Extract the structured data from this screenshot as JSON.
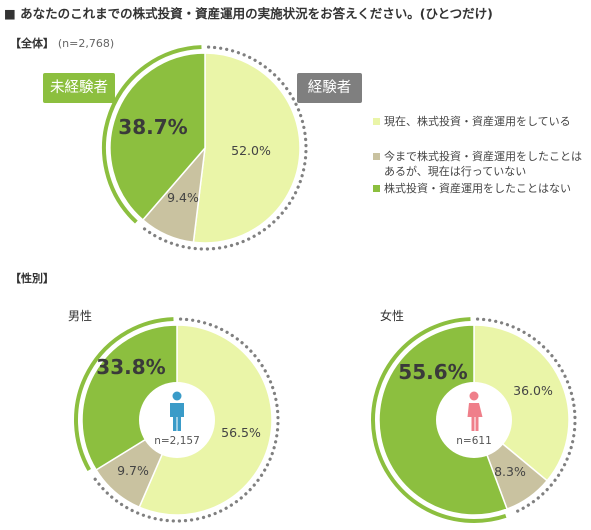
{
  "title": "■ あなたのこれまでの株式投資・資産運用の実施状況をお答えください。(ひとつだけ)",
  "section_total": {
    "label": "【全体】",
    "n": "(n=2,768)"
  },
  "tags": {
    "inexperienced": "未経験者",
    "experienced": "経験者"
  },
  "section_gender": {
    "label": "【性別】"
  },
  "legend": [
    {
      "lines": [
        "現在、株式投資・資産運用をしている"
      ],
      "color": "#eaf5a8"
    },
    {
      "lines": [
        "今まで株式投資・資産運用をしたことは",
        "あるが、現在は行っていない"
      ],
      "color": "#c9c2a0"
    },
    {
      "lines": [
        "株式投資・資産運用をしたことはない"
      ],
      "color": "#8cbf3f"
    }
  ],
  "colors": {
    "current": "#eaf5a8",
    "past": "#c9c2a0",
    "never": "#8cbf3f",
    "tag_never": "#8cbf3f",
    "tag_exp": "#7f7f7f",
    "male_icon": "#3a9bc8",
    "female_icon": "#ef7f8a",
    "dots": "#808080"
  },
  "chart_data": [
    {
      "type": "pie",
      "title": "全体",
      "n": "n=2,768",
      "categories": [
        "現在、株式投資・資産運用をしている",
        "今まで株式投資・資産運用をしたことはあるが、現在は行っていない",
        "株式投資・資産運用をしたことはない"
      ],
      "values": [
        52.0,
        9.4,
        38.7
      ],
      "labels": [
        "52.0%",
        "9.4%",
        "38.7%"
      ]
    },
    {
      "type": "pie",
      "title": "男性",
      "n": "n=2,157",
      "icon": "male-person-icon",
      "categories": [
        "現在、株式投資・資産運用をしている",
        "今まで株式投資・資産運用をしたことはあるが、現在は行っていない",
        "株式投資・資産運用をしたことはない"
      ],
      "values": [
        56.5,
        9.7,
        33.8
      ],
      "labels": [
        "56.5%",
        "9.7%",
        "33.8%"
      ]
    },
    {
      "type": "pie",
      "title": "女性",
      "n": "n=611",
      "icon": "female-person-icon",
      "categories": [
        "現在、株式投資・資産運用をしている",
        "今まで株式投資・資産運用をしたことはあるが、現在は行っていない",
        "株式投資・資産運用をしたことはない"
      ],
      "values": [
        36.0,
        8.3,
        55.6
      ],
      "labels": [
        "36.0%",
        "8.3%",
        "55.6%"
      ]
    }
  ]
}
